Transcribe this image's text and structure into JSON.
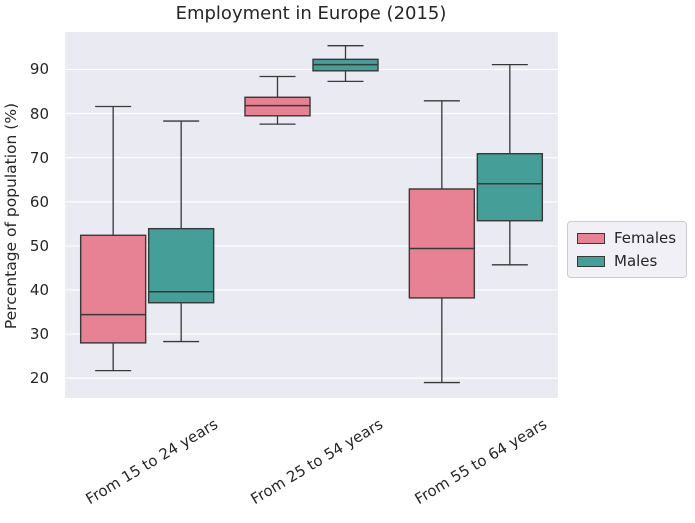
{
  "chart_data": {
    "type": "boxplot",
    "title": "Employment in Europe (2015)",
    "ylabel": "Percentage of population (%)",
    "xlabel": "",
    "categories": [
      "From 15 to 24 years",
      "From 25 to 54 years",
      "From 55 to 64 years"
    ],
    "y_ticks": [
      20,
      30,
      40,
      50,
      60,
      70,
      80,
      90
    ],
    "ylim": [
      15.5,
      98.5
    ],
    "grid": "horizontal white gridlines on shaded axes",
    "legend": {
      "position": "right-outside",
      "entries": [
        "Females",
        "Males"
      ]
    },
    "series": [
      {
        "name": "Females",
        "color": "#e68294",
        "boxes": [
          {
            "category": "From 15 to 24 years",
            "whislo": 21.7,
            "q1": 28.0,
            "med": 34.4,
            "q3": 52.4,
            "whishi": 81.6
          },
          {
            "category": "From 25 to 54 years",
            "whislo": 77.6,
            "q1": 79.5,
            "med": 81.8,
            "q3": 83.7,
            "whishi": 88.4
          },
          {
            "category": "From 55 to 64 years",
            "whislo": 19.0,
            "q1": 38.2,
            "med": 49.4,
            "q3": 62.9,
            "whishi": 82.9
          }
        ]
      },
      {
        "name": "Males",
        "color": "#459e97",
        "boxes": [
          {
            "category": "From 15 to 24 years",
            "whislo": 28.3,
            "q1": 37.1,
            "med": 39.6,
            "q3": 53.9,
            "whishi": 78.3
          },
          {
            "category": "From 25 to 54 years",
            "whislo": 87.3,
            "q1": 89.7,
            "med": 91.1,
            "q3": 92.3,
            "whishi": 95.4
          },
          {
            "category": "From 55 to 64 years",
            "whislo": 45.7,
            "q1": 55.7,
            "med": 64.1,
            "q3": 70.9,
            "whishi": 91.1
          }
        ]
      }
    ],
    "colors": {
      "axes_background": "#eaeaf2",
      "grid": "#ffffff",
      "box_edge": "#383838",
      "text": "#262626",
      "legend_background": "#f0f0f6",
      "legend_border": "#cccccc",
      "figure_background": "#ffffff"
    }
  }
}
